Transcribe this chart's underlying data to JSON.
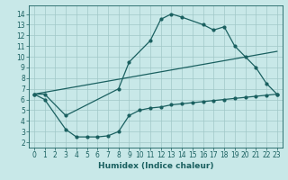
{
  "bg_color": "#c8e8e8",
  "grid_color": "#a0c8c8",
  "line_color": "#1a6060",
  "line_width": 0.9,
  "marker_size": 2.0,
  "xlabel": "Humidex (Indice chaleur)",
  "xlabel_fontsize": 6.5,
  "tick_fontsize": 5.5,
  "xlim": [
    -0.5,
    23.5
  ],
  "ylim": [
    1.5,
    14.8
  ],
  "xticks": [
    0,
    1,
    2,
    3,
    4,
    5,
    6,
    7,
    8,
    9,
    10,
    11,
    12,
    13,
    14,
    15,
    16,
    17,
    18,
    19,
    20,
    21,
    22,
    23
  ],
  "yticks": [
    2,
    3,
    4,
    5,
    6,
    7,
    8,
    9,
    10,
    11,
    12,
    13,
    14
  ],
  "line1_x": [
    0,
    1,
    3,
    8,
    9,
    11,
    12,
    13,
    14,
    16,
    17,
    18,
    19,
    20,
    21,
    22,
    23
  ],
  "line1_y": [
    6.5,
    6.5,
    4.5,
    7.0,
    9.5,
    11.5,
    13.5,
    14.0,
    13.7,
    13.0,
    12.5,
    12.8,
    11.0,
    10.0,
    9.0,
    7.5,
    6.5
  ],
  "line2_x": [
    0,
    23
  ],
  "line2_y": [
    6.5,
    10.5
  ],
  "line3_x": [
    0,
    1,
    3,
    4,
    5,
    6,
    7,
    8,
    9,
    10,
    11,
    12,
    13,
    14,
    15,
    16,
    17,
    18,
    19,
    20,
    21,
    22,
    23
  ],
  "line3_y": [
    6.5,
    6.0,
    3.2,
    2.5,
    2.5,
    2.5,
    2.6,
    3.0,
    4.5,
    5.0,
    5.2,
    5.3,
    5.5,
    5.6,
    5.7,
    5.8,
    5.9,
    6.0,
    6.1,
    6.2,
    6.3,
    6.4,
    6.5
  ]
}
